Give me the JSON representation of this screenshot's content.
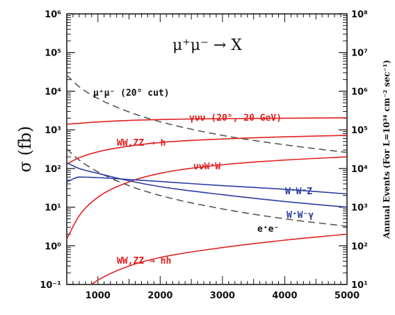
{
  "chart_data": {
    "type": "line",
    "title": "μ⁺μ⁻ → X",
    "xlabel": "",
    "ylabel": "σ (fb)",
    "y2label": "Annual Events (For L=10³⁴ cm⁻² sec⁻¹)",
    "xlim": [
      500,
      5000
    ],
    "ylim": [
      0.1,
      1000000
    ],
    "yscale": "log",
    "y2ticks": [
      "10¹",
      "10²",
      "10³",
      "10⁴",
      "10⁵",
      "10⁶",
      "10⁷",
      "10⁸"
    ],
    "xticks": [
      1000,
      2000,
      3000,
      4000,
      5000
    ],
    "yticks": [
      "10⁻¹",
      "10⁰",
      "10¹",
      "10²",
      "10³",
      "10⁴",
      "10⁵",
      "10⁶"
    ],
    "colors": {
      "red": "#e02020",
      "blue": "#2a3ca0",
      "dashed": "#555555"
    },
    "series": [
      {
        "name": "μ⁺μ⁻ (20° cut)",
        "color": "dashed",
        "dash": true,
        "x": [
          500,
          700,
          1000,
          1500,
          2000,
          3000,
          4000,
          5000
        ],
        "y": [
          26000,
          13000,
          6500,
          2900,
          1620,
          720,
          410,
          260
        ]
      },
      {
        "name": "e⁺e⁻",
        "color": "dashed",
        "dash": true,
        "x": [
          500,
          700,
          1000,
          1500,
          2000,
          3000,
          4000,
          5000
        ],
        "y": [
          320,
          165,
          82,
          36,
          20,
          9,
          5,
          3.2
        ]
      },
      {
        "name": "γνν (20°, 20 GeV)",
        "color": "red",
        "dash": false,
        "x": [
          500,
          1000,
          1500,
          2000,
          3000,
          4000,
          5000
        ],
        "y": [
          1400,
          1600,
          1750,
          1850,
          1950,
          2000,
          2050
        ]
      },
      {
        "name": "WW,ZZ → h",
        "color": "red",
        "dash": false,
        "x": [
          500,
          700,
          1000,
          1500,
          2000,
          3000,
          4000,
          5000
        ],
        "y": [
          130,
          190,
          270,
          380,
          470,
          580,
          660,
          720
        ]
      },
      {
        "name": "ννW⁺W⁻",
        "color": "red",
        "dash": false,
        "x": [
          500,
          700,
          1000,
          1500,
          2000,
          3000,
          4000,
          5000
        ],
        "y": [
          1.5,
          6,
          18,
          45,
          75,
          125,
          165,
          200
        ]
      },
      {
        "name": "W⁺W⁻Z",
        "color": "blue",
        "dash": false,
        "x": [
          500,
          700,
          1000,
          1500,
          2000,
          3000,
          4000,
          5000
        ],
        "y": [
          45,
          60,
          58,
          52,
          46,
          36,
          29,
          22
        ]
      },
      {
        "name": "W⁺W⁻γ",
        "color": "blue",
        "dash": false,
        "x": [
          500,
          700,
          1000,
          1500,
          2000,
          3000,
          4000,
          5000
        ],
        "y": [
          140,
          100,
          75,
          48,
          34,
          21,
          14,
          10
        ]
      },
      {
        "name": "WW,ZZ → hh",
        "color": "red",
        "dash": false,
        "x": [
          900,
          1000,
          1500,
          2000,
          3000,
          4000,
          5000
        ],
        "y": [
          0.1,
          0.13,
          0.3,
          0.5,
          0.9,
          1.4,
          2.0
        ]
      }
    ],
    "annotations": [
      {
        "text": "μ⁺μ⁻ (20° cut)",
        "color": "dashed"
      },
      {
        "text": "γνν (20°, 20 GeV)",
        "color": "red"
      },
      {
        "text": "WW,ZZ → h",
        "color": "red"
      },
      {
        "text": "ννW⁺W⁻",
        "color": "red"
      },
      {
        "text": "W⁺W⁻Z",
        "color": "blue"
      },
      {
        "text": "W⁺W⁻γ",
        "color": "blue"
      },
      {
        "text": "e⁺e⁻",
        "color": "dashed"
      },
      {
        "text": "WW,ZZ → hh",
        "color": "red"
      }
    ]
  }
}
